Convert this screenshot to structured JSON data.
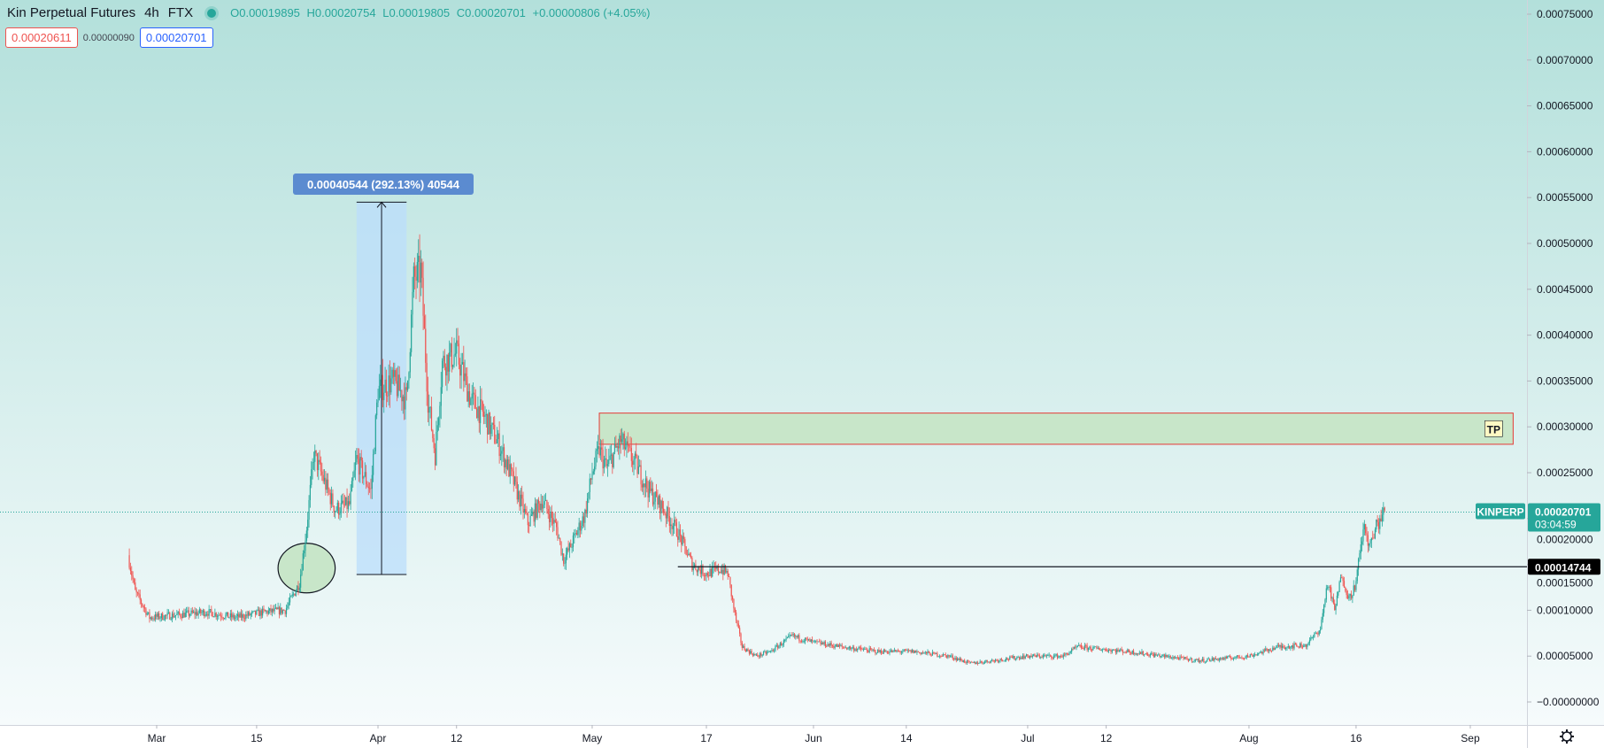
{
  "header": {
    "symbol_name": "Kin Perpetual Futures",
    "interval": "4h",
    "exchange": "FTX",
    "ohlc": {
      "o": "O0.00019895",
      "h": "H0.00020754",
      "l": "L0.00019805",
      "c": "C0.00020701",
      "change": "+0.00000806 (+4.05%)"
    },
    "sell_price": "0.00020611",
    "spread": "0.00000090",
    "buy_price": "0.00020701"
  },
  "colors": {
    "up": "#26a69a",
    "down": "#ef5350",
    "bg_top": "#b3e0db",
    "bg_bottom": "#f6fbfc",
    "measure_fill": "#bbdefb",
    "measure_label": "#5b8bd0",
    "tp_fill": "#c8e6c9",
    "tp_border": "#e53935",
    "ellipse_fill": "#c8e6c9"
  },
  "chart_data": {
    "type": "candlestick",
    "interval": "4h",
    "ylim": [
      -2e-05,
      0.00076
    ],
    "y_ticks": [
      "0.00075000",
      "0.00070000",
      "0.00065000",
      "0.00060000",
      "0.00055000",
      "0.00050000",
      "0.00045000",
      "0.00040000",
      "0.00035000",
      "0.00030000",
      "0.00025000",
      "0.00020000",
      "0.00015000",
      "0.00010000",
      "0.00005000",
      "−0.00000000"
    ],
    "y_tick_values": [
      0.00075,
      0.0007,
      0.00065,
      0.0006,
      0.00055,
      0.0005,
      0.00045,
      0.0004,
      0.00035,
      0.0003,
      0.00025,
      0.0002,
      0.00015,
      0.0001,
      5e-05,
      0
    ],
    "x_ticks": [
      {
        "label": "Mar",
        "date": "2021-03-01"
      },
      {
        "label": "15",
        "date": "2021-03-15"
      },
      {
        "label": "Apr",
        "date": "2021-04-01"
      },
      {
        "label": "12",
        "date": "2021-04-12"
      },
      {
        "label": "May",
        "date": "2021-05-01"
      },
      {
        "label": "17",
        "date": "2021-05-17"
      },
      {
        "label": "Jun",
        "date": "2021-06-01"
      },
      {
        "label": "14",
        "date": "2021-06-14"
      },
      {
        "label": "Jul",
        "date": "2021-07-01"
      },
      {
        "label": "12",
        "date": "2021-07-12"
      },
      {
        "label": "Aug",
        "date": "2021-08-01"
      },
      {
        "label": "16",
        "date": "2021-08-16"
      },
      {
        "label": "Sep",
        "date": "2021-09-01"
      }
    ],
    "price_path": [
      [
        "2021-02-25",
        0.00016
      ],
      [
        "2021-02-26",
        0.00012
      ],
      [
        "2021-02-28",
        9.2e-05
      ],
      [
        "2021-03-04",
        9.5e-05
      ],
      [
        "2021-03-08",
        9.8e-05
      ],
      [
        "2021-03-12",
        9.2e-05
      ],
      [
        "2021-03-16",
        9.8e-05
      ],
      [
        "2021-03-19",
        0.0001
      ],
      [
        "2021-03-21",
        0.00013
      ],
      [
        "2021-03-22",
        0.00019
      ],
      [
        "2021-03-23",
        0.00027
      ],
      [
        "2021-03-24",
        0.00025
      ],
      [
        "2021-03-26",
        0.00021
      ],
      [
        "2021-03-28",
        0.000215
      ],
      [
        "2021-03-29",
        0.000265
      ],
      [
        "2021-03-31",
        0.00023
      ],
      [
        "2021-04-01",
        0.00034
      ],
      [
        "2021-04-03",
        0.00035
      ],
      [
        "2021-04-05",
        0.00033
      ],
      [
        "2021-04-06",
        0.00046
      ],
      [
        "2021-04-07",
        0.00047
      ],
      [
        "2021-04-08",
        0.00033
      ],
      [
        "2021-04-09",
        0.00027
      ],
      [
        "2021-04-10",
        0.00037
      ],
      [
        "2021-04-12",
        0.00038
      ],
      [
        "2021-04-14",
        0.00033
      ],
      [
        "2021-04-16",
        0.00031
      ],
      [
        "2021-04-18",
        0.00028
      ],
      [
        "2021-04-20",
        0.00024
      ],
      [
        "2021-04-22",
        0.000195
      ],
      [
        "2021-04-24",
        0.00022
      ],
      [
        "2021-04-26",
        0.00019
      ],
      [
        "2021-04-27",
        0.000155
      ],
      [
        "2021-04-28",
        0.00017
      ],
      [
        "2021-04-30",
        0.000205
      ],
      [
        "2021-05-01",
        0.00025
      ],
      [
        "2021-05-02",
        0.000275
      ],
      [
        "2021-05-03",
        0.000255
      ],
      [
        "2021-05-05",
        0.000285
      ],
      [
        "2021-05-07",
        0.00026
      ],
      [
        "2021-05-09",
        0.00023
      ],
      [
        "2021-05-11",
        0.00021
      ],
      [
        "2021-05-13",
        0.000185
      ],
      [
        "2021-05-15",
        0.00015
      ],
      [
        "2021-05-17",
        0.00014
      ],
      [
        "2021-05-19",
        0.000145
      ],
      [
        "2021-05-20",
        0.00014
      ],
      [
        "2021-05-21",
        9.5e-05
      ],
      [
        "2021-05-22",
        6e-05
      ],
      [
        "2021-05-24",
        5e-05
      ],
      [
        "2021-05-26",
        5.5e-05
      ],
      [
        "2021-05-29",
        7.2e-05
      ],
      [
        "2021-06-01",
        6.5e-05
      ],
      [
        "2021-06-05",
        6e-05
      ],
      [
        "2021-06-10",
        5.5e-05
      ],
      [
        "2021-06-15",
        5.5e-05
      ],
      [
        "2021-06-20",
        5e-05
      ],
      [
        "2021-06-23",
        4.2e-05
      ],
      [
        "2021-06-26",
        4.5e-05
      ],
      [
        "2021-07-01",
        5e-05
      ],
      [
        "2021-07-06",
        5e-05
      ],
      [
        "2021-07-08",
        6e-05
      ],
      [
        "2021-07-15",
        5.5e-05
      ],
      [
        "2021-07-20",
        5e-05
      ],
      [
        "2021-07-25",
        4.5e-05
      ],
      [
        "2021-08-01",
        5e-05
      ],
      [
        "2021-08-05",
        6e-05
      ],
      [
        "2021-08-09",
        6.2e-05
      ],
      [
        "2021-08-11",
        8e-05
      ],
      [
        "2021-08-12",
        0.00013
      ],
      [
        "2021-08-13",
        0.0001
      ],
      [
        "2021-08-14",
        0.00014
      ],
      [
        "2021-08-15",
        0.000112
      ],
      [
        "2021-08-16",
        0.00013
      ],
      [
        "2021-08-17",
        0.00019
      ],
      [
        "2021-08-18",
        0.00017
      ],
      [
        "2021-08-19",
        0.000195
      ],
      [
        "2021-08-20",
        0.000207
      ]
    ]
  },
  "drawings": {
    "measure": {
      "date_from": "2021-03-29",
      "date_to": "2021-04-05",
      "price_from": 0.000139,
      "price_to": 0.000545,
      "label": "0.00040544 (292.13%) 40544"
    },
    "ellipse": {
      "center_date": "2021-03-22",
      "center_price": 0.000146,
      "half_width_days": 4,
      "half_height_price": 2.7e-05
    },
    "tp_zone": {
      "date_from": "2021-05-02",
      "date_to": "2021-09-07",
      "price_top": 0.000315,
      "price_bottom": 0.000281,
      "label": "TP"
    },
    "hline": {
      "date_from": "2021-05-13",
      "price": 0.00014744,
      "label": "0.00014744"
    },
    "last_price": {
      "price": 0.00020701,
      "symbol_label": "KINPERP",
      "price_label": "0.00020701",
      "countdown": "03:04:59"
    }
  }
}
